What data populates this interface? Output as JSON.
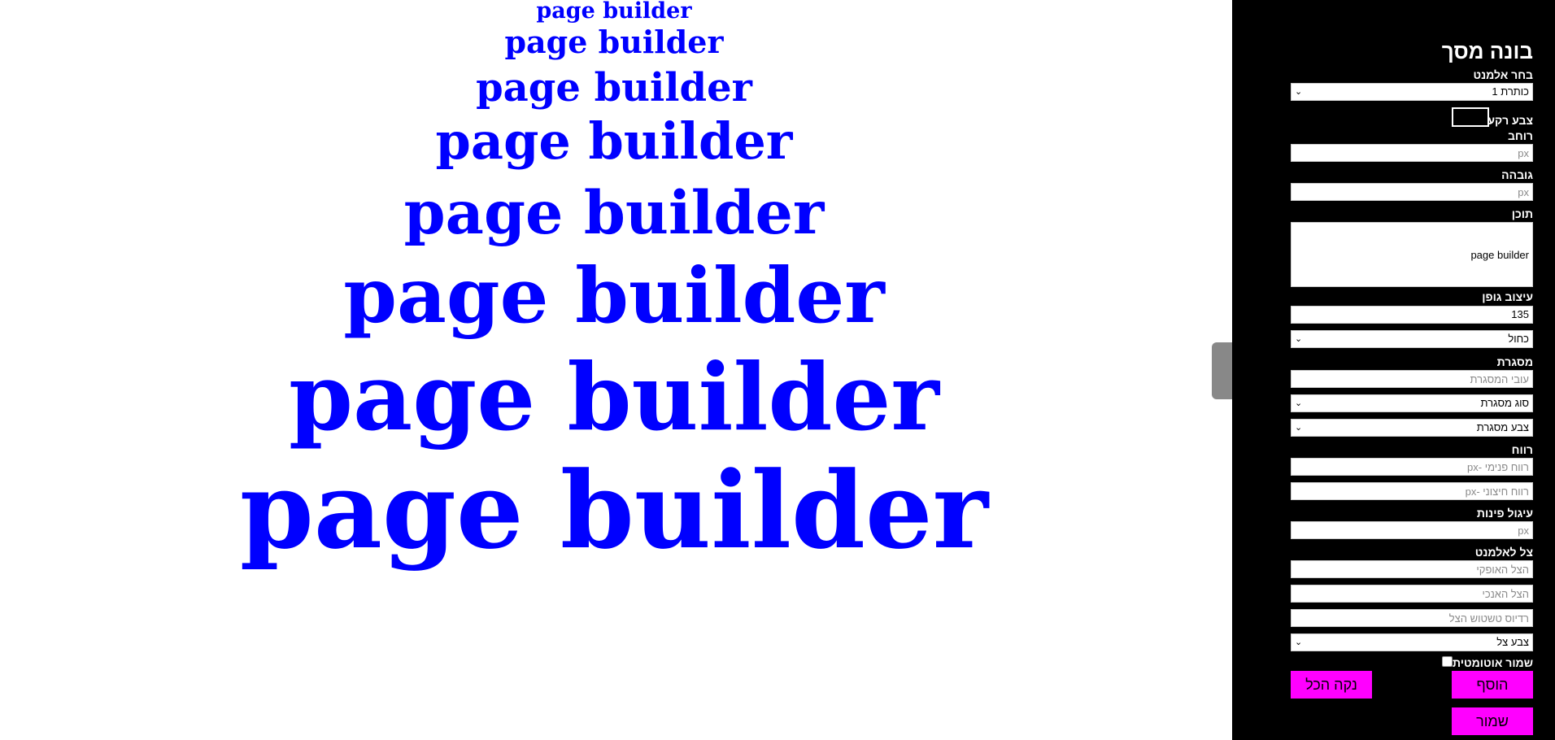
{
  "canvas": {
    "headings": [
      {
        "text": "page builder",
        "level": "h6"
      },
      {
        "text": "page builder",
        "level": "h5"
      },
      {
        "text": "page builder",
        "level": "h4"
      },
      {
        "text": "page builder",
        "level": "h3"
      },
      {
        "text": "page builder",
        "level": "h2"
      },
      {
        "text": "page builder",
        "level": "h1"
      },
      {
        "text": "page builder",
        "level": "h1"
      },
      {
        "text": "page builder",
        "level": "h1"
      }
    ],
    "text_color": "#0000ff"
  },
  "sidebar": {
    "title": "בונה מסך",
    "element_label": "בחר אלמנט",
    "element_value": "כותרת 1",
    "bg_color_label": "צבע רקע",
    "width_label": "רוחב",
    "width_placeholder": "px",
    "height_label": "גובהה",
    "height_placeholder": "px",
    "content_label": "תוכן",
    "content_value": "page builder",
    "font_label": "עיצוב גופן",
    "font_size_value": "135",
    "font_color_value": "כחול",
    "border_label": "מסגרת",
    "border_width_placeholder": "עובי המסגרת",
    "border_type_value": "סוג מסגרת",
    "border_color_value": "צבע מסגרת",
    "spacing_label": "רווח",
    "padding_placeholder": "רווח פנימי -px",
    "margin_placeholder": "רווח חיצוני -px",
    "radius_label": "עיגול פינות",
    "radius_placeholder": "px",
    "shadow_label": "צל לאלמנט",
    "shadow_h_placeholder": "הצל האופקי",
    "shadow_v_placeholder": "הצל האנכי",
    "shadow_blur_placeholder": "רדיוס טשטוש הצל",
    "shadow_color_value": "צבע צל",
    "autosave_label": "שמור אוטומטית",
    "add_button": "הוסף",
    "clear_button": "נקה הכל",
    "save_button": "שמור"
  },
  "colors": {
    "sidebar_bg": "#000000",
    "accent_button": "#ff00ff",
    "handle": "#888888"
  }
}
